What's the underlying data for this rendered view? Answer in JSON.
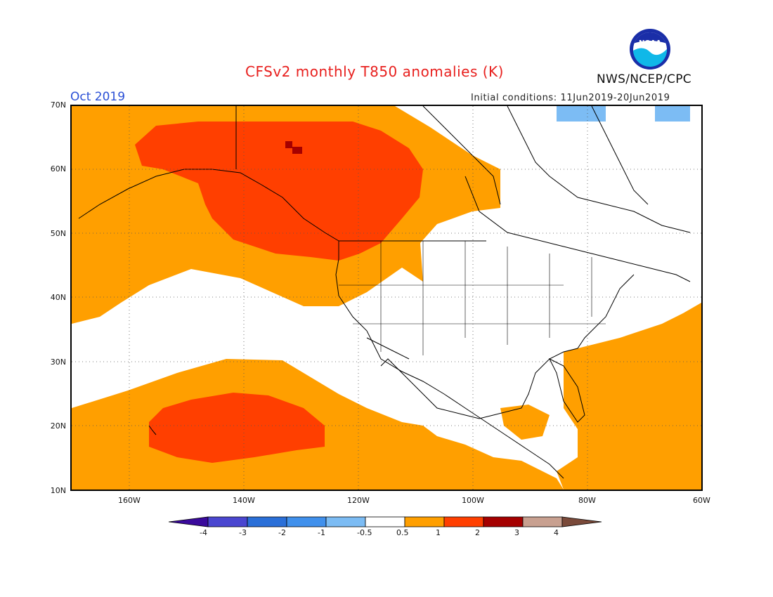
{
  "header": {
    "title": "CFSv2 monthly T850 anomalies (K)",
    "month": "Oct 2019",
    "initial_conditions": "Initial conditions: 11Jun2019-20Jun2019",
    "agency": "NWS/NCEP/CPC",
    "logo_text": "NOAA"
  },
  "map": {
    "latitude_labels": [
      "70N",
      "60N",
      "50N",
      "40N",
      "30N",
      "20N",
      "10N"
    ],
    "longitude_labels": [
      "160W",
      "140W",
      "120W",
      "100W",
      "80W",
      "60W"
    ],
    "extent": {
      "lon_min": -170,
      "lon_max": -60,
      "lat_min": 10,
      "lat_max": 70
    },
    "grid": "dotted"
  },
  "colorbar": {
    "tick_labels": [
      "-4",
      "-3",
      "-2",
      "-1",
      "-0.5",
      "0.5",
      "1",
      "2",
      "3",
      "4"
    ],
    "colors": [
      "#3a0a9c",
      "#4a46d0",
      "#2a6fd8",
      "#4090ec",
      "#7cbcf4",
      "#ffffff",
      "#ff9f00",
      "#ff3f00",
      "#a50000",
      "#c8a090",
      "#7a4a3a"
    ]
  }
}
